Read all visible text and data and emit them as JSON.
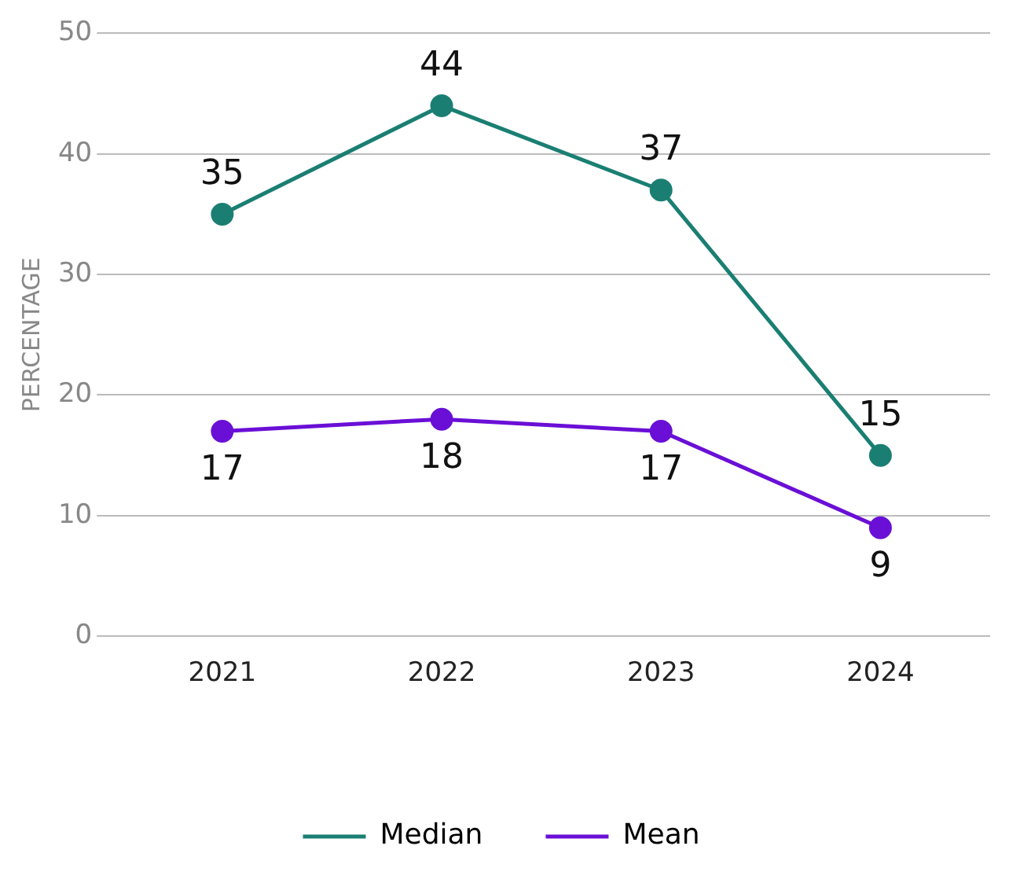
{
  "chart_data": {
    "type": "line",
    "ylabel": "PERCENTAGE",
    "categories": [
      "2021",
      "2022",
      "2023",
      "2024"
    ],
    "series": [
      {
        "name": "Median",
        "color": "#1a7f72",
        "values": [
          35,
          44,
          37,
          15
        ]
      },
      {
        "name": "Mean",
        "color": "#6a0fd6",
        "values": [
          17,
          18,
          17,
          9
        ]
      }
    ],
    "ylim": [
      0,
      50
    ],
    "yticks": [
      0,
      10,
      20,
      30,
      40,
      50
    ],
    "grid": "y",
    "legend": "bottom",
    "marker": "circle",
    "line_style": "solid",
    "data_labels": true
  }
}
